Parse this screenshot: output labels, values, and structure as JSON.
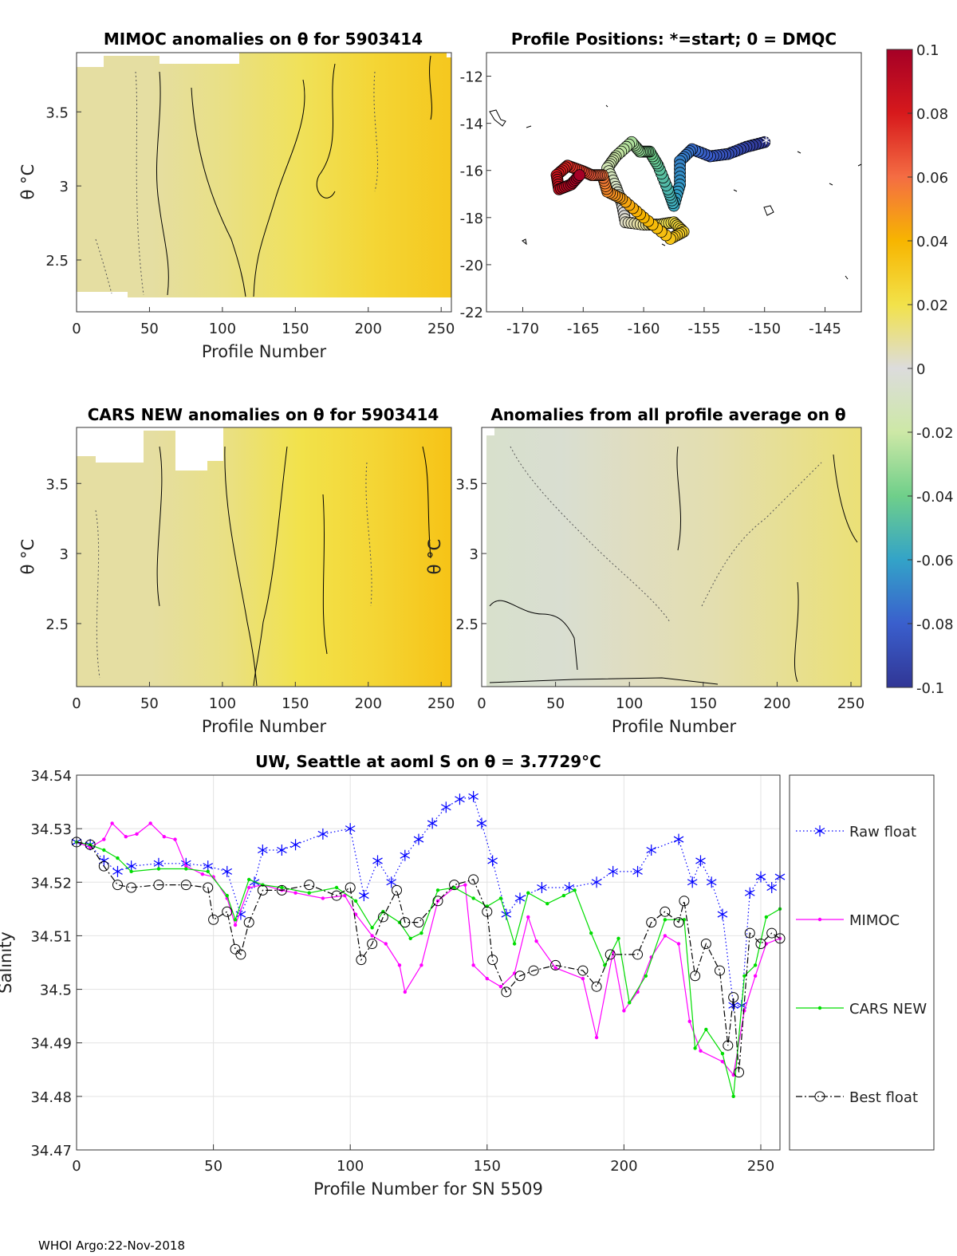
{
  "footer": "WHOI Argo:22-Nov-2018",
  "chart_data": [
    {
      "type": "heatmap",
      "title": "MIMOC anomalies on θ  for 5903414",
      "xlabel": "Profile Number",
      "ylabel": "θ °C",
      "xlim": [
        0,
        257
      ],
      "ylim": [
        2.15,
        3.9
      ],
      "xticks": [
        "0",
        "50",
        "100",
        "150",
        "200",
        "250"
      ],
      "yticks": [
        "2.5",
        "3",
        "3.5"
      ],
      "anomaly_start": [
        0.008,
        0.008,
        0.012,
        0.018,
        0.026,
        0.032
      ],
      "anomaly_end": [
        0.008,
        0.009,
        0.014,
        0.02,
        0.028,
        0.034
      ]
    },
    {
      "type": "scatter",
      "title": "Profile Positions: *=start; 0 = DMQC",
      "xlim": [
        -173,
        -142
      ],
      "ylim": [
        -22,
        -11
      ],
      "xticks": [
        "-170",
        "-165",
        "-160",
        "-155",
        "-150",
        "-145"
      ],
      "yticks": [
        "-12",
        "-14",
        "-16",
        "-18",
        "-20",
        "-22"
      ],
      "start_marker": "*",
      "track": [
        {
          "lon": -150.0,
          "lat": -14.8
        },
        {
          "lon": -151.5,
          "lat": -15.0
        },
        {
          "lon": -153.0,
          "lat": -15.3
        },
        {
          "lon": -154.5,
          "lat": -15.4
        },
        {
          "lon": -156.0,
          "lat": -15.1
        },
        {
          "lon": -157.0,
          "lat": -15.6
        },
        {
          "lon": -157.0,
          "lat": -16.6
        },
        {
          "lon": -157.5,
          "lat": -17.5
        },
        {
          "lon": -158.0,
          "lat": -16.8
        },
        {
          "lon": -158.8,
          "lat": -15.8
        },
        {
          "lon": -159.5,
          "lat": -15.2
        },
        {
          "lon": -160.3,
          "lat": -15.2
        },
        {
          "lon": -161.0,
          "lat": -14.8
        },
        {
          "lon": -162.3,
          "lat": -15.4
        },
        {
          "lon": -163.0,
          "lat": -15.9
        },
        {
          "lon": -162.3,
          "lat": -16.7
        },
        {
          "lon": -161.8,
          "lat": -17.4
        },
        {
          "lon": -161.5,
          "lat": -18.2
        },
        {
          "lon": -160.0,
          "lat": -18.3
        },
        {
          "lon": -158.7,
          "lat": -18.3
        },
        {
          "lon": -157.5,
          "lat": -18.2
        },
        {
          "lon": -156.7,
          "lat": -18.6
        },
        {
          "lon": -157.8,
          "lat": -18.9
        },
        {
          "lon": -160.0,
          "lat": -18.0
        },
        {
          "lon": -161.8,
          "lat": -17.2
        },
        {
          "lon": -163.0,
          "lat": -16.9
        },
        {
          "lon": -163.4,
          "lat": -16.2
        },
        {
          "lon": -164.3,
          "lat": -16.2
        },
        {
          "lon": -165.2,
          "lat": -16.0
        },
        {
          "lon": -166.3,
          "lat": -15.8
        },
        {
          "lon": -167.2,
          "lat": -16.2
        },
        {
          "lon": -167.0,
          "lat": -16.8
        },
        {
          "lon": -166.0,
          "lat": -16.6
        },
        {
          "lon": -165.3,
          "lat": -16.2
        }
      ]
    },
    {
      "type": "heatmap",
      "title": "CARS NEW anomalies on θ for 5903414",
      "xlabel": "Profile Number",
      "ylabel": "θ °C",
      "xlim": [
        0,
        257
      ],
      "ylim": [
        2.05,
        3.9
      ],
      "xticks": [
        "0",
        "50",
        "100",
        "150",
        "200",
        "250"
      ],
      "yticks": [
        "2.5",
        "3",
        "3.5"
      ],
      "anomaly_start": [
        0.008,
        0.008,
        0.012,
        0.02,
        0.026,
        0.034
      ],
      "anomaly_end": [
        0.008,
        0.009,
        0.014,
        0.022,
        0.028,
        0.036
      ]
    },
    {
      "type": "heatmap",
      "title": "Anomalies from all profile average on θ",
      "xlabel": "Profile Number",
      "ylabel": "θ °C",
      "xlim": [
        0,
        257
      ],
      "ylim": [
        2.05,
        3.9
      ],
      "xticks": [
        "0",
        "50",
        "100",
        "150",
        "200",
        "250"
      ],
      "yticks": [
        "2.5",
        "3",
        "3.5"
      ],
      "anomaly_start": [
        -0.006,
        -0.004,
        0.004,
        0.006,
        0.01,
        0.014
      ],
      "anomaly_end": [
        -0.004,
        -0.002,
        0.006,
        0.008,
        0.014,
        0.018
      ]
    },
    {
      "type": "colorbar",
      "range": [
        -0.1,
        0.1
      ],
      "tick_labels": [
        "0.1",
        "0.08",
        "0.06",
        "0.04",
        "0.02",
        "0",
        "-0.02",
        "-0.04",
        "-0.06",
        "-0.08",
        "-0.1"
      ]
    },
    {
      "type": "line",
      "title": "UW, Seattle at aoml S on θ = 3.7729°C",
      "xlabel": "Profile Number for SN 5509",
      "ylabel": "Salinity",
      "xlim": [
        0,
        257
      ],
      "ylim": [
        34.47,
        34.54
      ],
      "xticks": [
        "0",
        "50",
        "100",
        "150",
        "200",
        "250"
      ],
      "yticks": [
        "34.47",
        "34.48",
        "34.49",
        "34.5",
        "34.51",
        "34.52",
        "34.53",
        "34.54"
      ],
      "legend_placement": "right",
      "series": [
        {
          "name": "Raw float",
          "color": "#0000ff",
          "style": "dotted",
          "marker": "asterisk",
          "points": [
            [
              0,
              34.5275
            ],
            [
              5,
              34.527
            ],
            [
              10,
              34.524
            ],
            [
              15,
              34.522
            ],
            [
              20,
              34.523
            ],
            [
              30,
              34.5235
            ],
            [
              40,
              34.5235
            ],
            [
              48,
              34.523
            ],
            [
              55,
              34.522
            ],
            [
              60,
              34.514
            ],
            [
              65,
              34.52
            ],
            [
              68,
              34.526
            ],
            [
              75,
              34.526
            ],
            [
              80,
              34.527
            ],
            [
              90,
              34.529
            ],
            [
              100,
              34.53
            ],
            [
              105,
              34.5175
            ],
            [
              110,
              34.524
            ],
            [
              115,
              34.52
            ],
            [
              120,
              34.525
            ],
            [
              125,
              34.528
            ],
            [
              130,
              34.531
            ],
            [
              135,
              34.534
            ],
            [
              140,
              34.5355
            ],
            [
              145,
              34.536
            ],
            [
              148,
              34.531
            ],
            [
              152,
              34.524
            ],
            [
              157,
              34.514
            ],
            [
              162,
              34.517
            ],
            [
              170,
              34.519
            ],
            [
              180,
              34.519
            ],
            [
              190,
              34.52
            ],
            [
              196,
              34.522
            ],
            [
              205,
              34.522
            ],
            [
              210,
              34.526
            ],
            [
              220,
              34.528
            ],
            [
              225,
              34.52
            ],
            [
              228,
              34.524
            ],
            [
              232,
              34.52
            ],
            [
              236,
              34.514
            ],
            [
              240,
              34.497
            ],
            [
              243,
              34.497
            ],
            [
              246,
              34.518
            ],
            [
              250,
              34.521
            ],
            [
              254,
              34.519
            ],
            [
              257,
              34.521
            ]
          ]
        },
        {
          "name": "MIMOC",
          "color": "#ff00ff",
          "style": "solid",
          "marker": "dot",
          "points": [
            [
              0,
              34.5275
            ],
            [
              5,
              34.5265
            ],
            [
              10,
              34.528
            ],
            [
              13,
              34.531
            ],
            [
              18,
              34.5285
            ],
            [
              22,
              34.529
            ],
            [
              27,
              34.531
            ],
            [
              32,
              34.5285
            ],
            [
              36,
              34.528
            ],
            [
              40,
              34.523
            ],
            [
              46,
              34.5215
            ],
            [
              50,
              34.521
            ],
            [
              55,
              34.517
            ],
            [
              58,
              34.512
            ],
            [
              63,
              34.519
            ],
            [
              68,
              34.5195
            ],
            [
              75,
              34.5185
            ],
            [
              80,
              34.518
            ],
            [
              90,
              34.517
            ],
            [
              98,
              34.5175
            ],
            [
              102,
              34.514
            ],
            [
              108,
              34.51
            ],
            [
              113,
              34.5085
            ],
            [
              118,
              34.5045
            ],
            [
              120,
              34.4995
            ],
            [
              126,
              34.5045
            ],
            [
              132,
              34.5165
            ],
            [
              138,
              34.519
            ],
            [
              142,
              34.5195
            ],
            [
              145,
              34.5045
            ],
            [
              150,
              34.502
            ],
            [
              155,
              34.5005
            ],
            [
              160,
              34.503
            ],
            [
              165,
              34.5135
            ],
            [
              168,
              34.509
            ],
            [
              175,
              34.504
            ],
            [
              185,
              34.502
            ],
            [
              190,
              34.491
            ],
            [
              196,
              34.507
            ],
            [
              200,
              34.496
            ],
            [
              205,
              34.4995
            ],
            [
              210,
              34.506
            ],
            [
              215,
              34.51
            ],
            [
              220,
              34.5085
            ],
            [
              224,
              34.494
            ],
            [
              228,
              34.4885
            ],
            [
              236,
              34.4865
            ],
            [
              240,
              34.484
            ],
            [
              244,
              34.496
            ],
            [
              248,
              34.5025
            ],
            [
              252,
              34.5085
            ],
            [
              257,
              34.5095
            ]
          ]
        },
        {
          "name": "CARS NEW",
          "color": "#00dd00",
          "style": "solid",
          "marker": "dot",
          "points": [
            [
              0,
              34.5275
            ],
            [
              5,
              34.527
            ],
            [
              10,
              34.526
            ],
            [
              15,
              34.5245
            ],
            [
              20,
              34.522
            ],
            [
              30,
              34.5225
            ],
            [
              40,
              34.5225
            ],
            [
              48,
              34.522
            ],
            [
              55,
              34.5175
            ],
            [
              58,
              34.513
            ],
            [
              63,
              34.5205
            ],
            [
              68,
              34.5195
            ],
            [
              75,
              34.519
            ],
            [
              85,
              34.518
            ],
            [
              95,
              34.519
            ],
            [
              102,
              34.5165
            ],
            [
              108,
              34.5115
            ],
            [
              112,
              34.5145
            ],
            [
              118,
              34.5125
            ],
            [
              122,
              34.5095
            ],
            [
              126,
              34.5105
            ],
            [
              132,
              34.5185
            ],
            [
              138,
              34.519
            ],
            [
              145,
              34.517
            ],
            [
              150,
              34.5155
            ],
            [
              155,
              34.517
            ],
            [
              160,
              34.5085
            ],
            [
              165,
              34.518
            ],
            [
              172,
              34.516
            ],
            [
              178,
              34.5175
            ],
            [
              182,
              34.5185
            ],
            [
              188,
              34.5105
            ],
            [
              193,
              34.5045
            ],
            [
              198,
              34.5095
            ],
            [
              202,
              34.4975
            ],
            [
              208,
              34.5025
            ],
            [
              215,
              34.513
            ],
            [
              222,
              34.513
            ],
            [
              226,
              34.489
            ],
            [
              230,
              34.4925
            ],
            [
              236,
              34.488
            ],
            [
              240,
              34.48
            ],
            [
              244,
              34.5025
            ],
            [
              248,
              34.5045
            ],
            [
              252,
              34.5135
            ],
            [
              257,
              34.515
            ]
          ]
        },
        {
          "name": "Best float",
          "color": "#000000",
          "style": "dashdot",
          "marker": "circle",
          "points": [
            [
              0,
              34.5275
            ],
            [
              5,
              34.527
            ],
            [
              10,
              34.523
            ],
            [
              15,
              34.5195
            ],
            [
              20,
              34.519
            ],
            [
              30,
              34.5195
            ],
            [
              40,
              34.5195
            ],
            [
              48,
              34.519
            ],
            [
              50,
              34.513
            ],
            [
              55,
              34.5145
            ],
            [
              58,
              34.5075
            ],
            [
              60,
              34.5065
            ],
            [
              63,
              34.5125
            ],
            [
              68,
              34.5185
            ],
            [
              75,
              34.5185
            ],
            [
              85,
              34.5195
            ],
            [
              95,
              34.5175
            ],
            [
              100,
              34.519
            ],
            [
              104,
              34.5055
            ],
            [
              108,
              34.5085
            ],
            [
              112,
              34.5135
            ],
            [
              117,
              34.5185
            ],
            [
              120,
              34.5125
            ],
            [
              125,
              34.5125
            ],
            [
              132,
              34.5165
            ],
            [
              138,
              34.5195
            ],
            [
              145,
              34.5205
            ],
            [
              150,
              34.5145
            ],
            [
              152,
              34.5055
            ],
            [
              157,
              34.4995
            ],
            [
              162,
              34.5025
            ],
            [
              167,
              34.5035
            ],
            [
              175,
              34.5045
            ],
            [
              185,
              34.5035
            ],
            [
              190,
              34.5005
            ],
            [
              195,
              34.5065
            ],
            [
              205,
              34.5065
            ],
            [
              210,
              34.5125
            ],
            [
              215,
              34.5145
            ],
            [
              220,
              34.5125
            ],
            [
              222,
              34.5165
            ],
            [
              226,
              34.5025
            ],
            [
              230,
              34.5085
            ],
            [
              235,
              34.5035
            ],
            [
              238,
              34.4895
            ],
            [
              240,
              34.4985
            ],
            [
              242,
              34.4845
            ],
            [
              246,
              34.5105
            ],
            [
              250,
              34.5085
            ],
            [
              254,
              34.5105
            ],
            [
              257,
              34.5095
            ]
          ]
        }
      ]
    }
  ]
}
